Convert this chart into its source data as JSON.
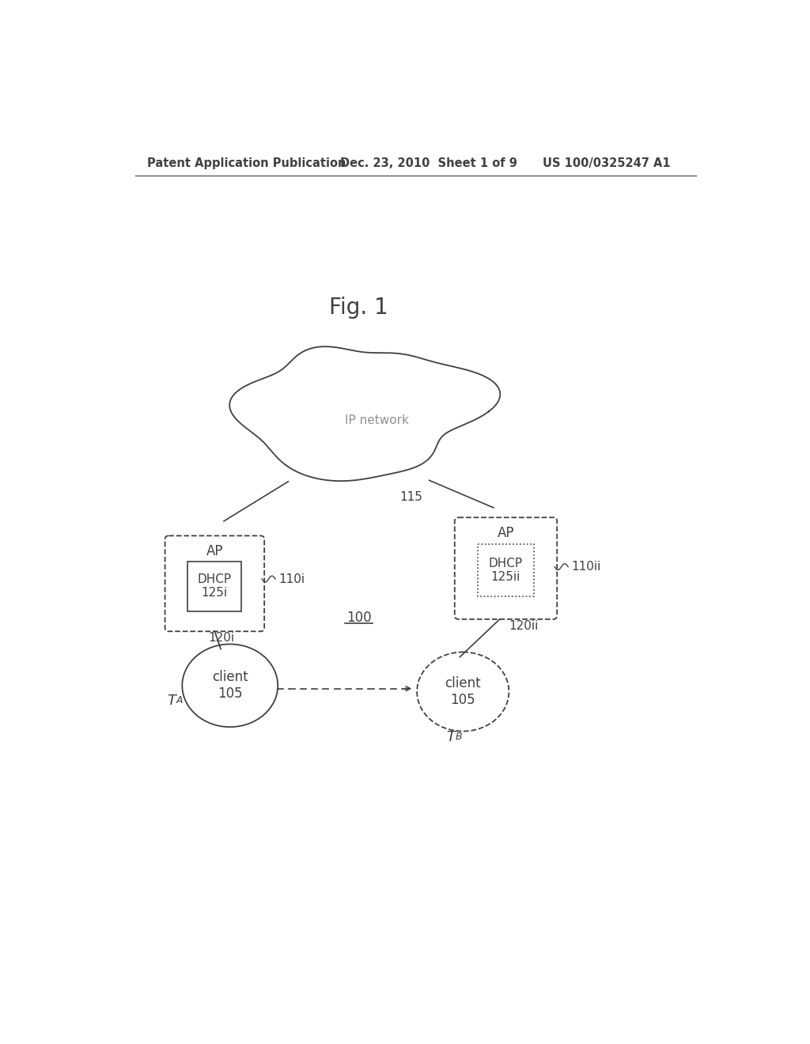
{
  "background_color": "#ffffff",
  "header_left": "Patent Application Publication",
  "header_mid": "Dec. 23, 2010  Sheet 1 of 9",
  "header_right": "US 100/0325247 A1",
  "fig_title": "Fig. 1",
  "ip_network_label": "IP network",
  "label_115": "115",
  "ap_left_label": "AP",
  "dhcp_left_label": "DHCP\n125i",
  "label_110i": "110i",
  "label_120i": "120i",
  "client_left_label": "client\n105",
  "label_TA": "T",
  "label_TA_sub": "A",
  "ap_right_label": "AP",
  "dhcp_right_label": "DHCP\n125ii",
  "label_110ii": "110ii",
  "label_120ii": "120ii",
  "client_right_label": "client\n105",
  "label_TB": "T",
  "label_TB_sub": "B",
  "label_100": "100",
  "line_color": "#404040",
  "text_color": "#404040",
  "gray_text_color": "#909090",
  "header_fontsize": 10.5,
  "title_fontsize": 20
}
